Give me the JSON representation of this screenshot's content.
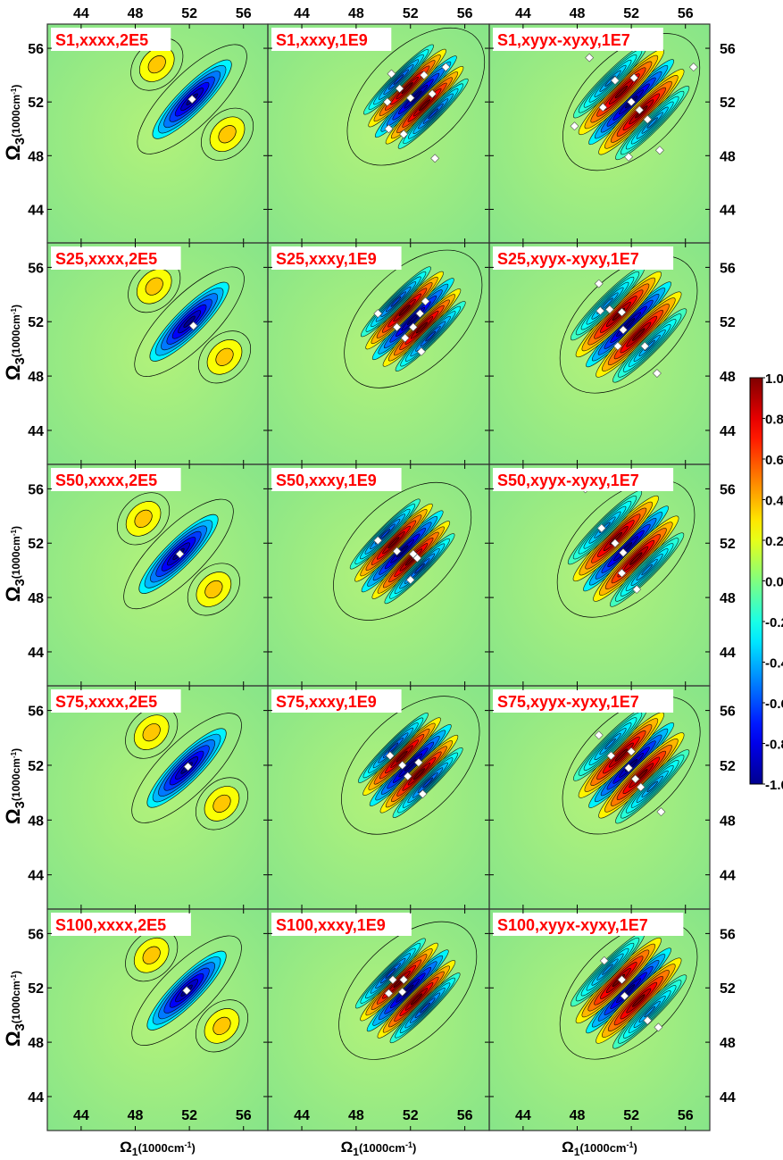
{
  "chart_data": {
    "type": "heatmap",
    "description_grid": "5 rows x 3 columns of 2D spectra contour maps",
    "x_axis": {
      "label_main": "Ω",
      "label_sub": "1",
      "label_unit": "(1000cm",
      "label_exp": "-1",
      "label_close": ")",
      "range": [
        41.5,
        57.8
      ],
      "ticks": [
        44,
        48,
        52,
        56
      ]
    },
    "y_axis": {
      "label_main": "Ω",
      "label_sub": "3",
      "label_unit": "(1000cm",
      "label_exp": "-1",
      "label_close": ")",
      "range": [
        41.5,
        57.8
      ],
      "ticks": [
        44,
        48,
        52,
        56
      ]
    },
    "colorbar": {
      "range": [
        -1.0,
        1.0
      ],
      "tick_labels": [
        "1.0",
        "0.8",
        "0.6",
        "0.4",
        "0.2",
        "0.0",
        "-0.2",
        "-0.4",
        "-0.6",
        "-0.8",
        "-1.0"
      ],
      "colors": [
        "#00008f",
        "#0000ff",
        "#0080ff",
        "#00ffff",
        "#80ff80",
        "#ffff00",
        "#ff8000",
        "#ff0000",
        "#800000"
      ]
    },
    "panel_titles": [
      [
        "S1,xxxx,2E5",
        "S1,xxxy,1E9",
        "S1,xyyx-xyxy,1E7"
      ],
      [
        "S25,xxxx,2E5",
        "S25,xxxy,1E9",
        "S25,xyyx-xyxy,1E7"
      ],
      [
        "S50,xxxx,2E5",
        "S50,xxxy,1E9",
        "S50,xyyx-xyxy,1E7"
      ],
      [
        "S75,xxxx,2E5",
        "S75,xxxy,1E9",
        "S75,xyyx-xyxy,1E7"
      ],
      [
        "S100,xxxx,2E5",
        "S100,xxxy,1E9",
        "S100,xyyx-xyxy,1E7"
      ]
    ],
    "column_types": [
      "xxxx",
      "xxxy",
      "xyyx-xyxy"
    ],
    "diagonal_center": [
      [
        52.2,
        52.4,
        52.0
      ],
      [
        52.0,
        52.2,
        51.8
      ],
      [
        51.2,
        51.4,
        51.6
      ],
      [
        51.8,
        52.0,
        52.0
      ],
      [
        51.8,
        51.8,
        51.8
      ]
    ],
    "peak_markers": [
      [
        [
          [
            52.2,
            52.2
          ]
        ],
        [
          [
            50.6,
            54.1
          ],
          [
            51.2,
            53.0
          ],
          [
            50.3,
            52.0
          ],
          [
            52.0,
            52.3
          ],
          [
            53.6,
            52.6
          ],
          [
            50.4,
            50.0
          ],
          [
            51.5,
            49.6
          ],
          [
            53.8,
            47.8
          ],
          [
            53.0,
            54.0
          ],
          [
            54.6,
            54.6
          ]
        ],
        [
          [
            48.9,
            55.3
          ],
          [
            50.8,
            53.6
          ],
          [
            52.2,
            53.8
          ],
          [
            52.0,
            52.0
          ],
          [
            52.6,
            51.4
          ],
          [
            49.9,
            51.6
          ],
          [
            47.8,
            50.2
          ],
          [
            53.2,
            50.7
          ],
          [
            51.8,
            47.9
          ],
          [
            54.1,
            48.4
          ],
          [
            56.6,
            54.6
          ]
        ]
      ],
      [
        [
          [
            52.3,
            51.7
          ]
        ],
        [
          [
            49.6,
            52.6
          ],
          [
            51.0,
            51.6
          ],
          [
            53.1,
            53.5
          ],
          [
            52.2,
            51.6
          ],
          [
            51.6,
            50.8
          ],
          [
            52.8,
            49.8
          ],
          [
            52.7,
            52.6
          ]
        ],
        [
          [
            49.6,
            54.8
          ],
          [
            49.7,
            52.8
          ],
          [
            50.4,
            52.9
          ],
          [
            51.3,
            52.7
          ],
          [
            51.4,
            51.4
          ],
          [
            51.0,
            50.2
          ],
          [
            53.0,
            50.2
          ],
          [
            53.9,
            48.2
          ]
        ]
      ],
      [
        [
          [
            51.3,
            51.2
          ]
        ],
        [
          [
            49.6,
            52.2
          ],
          [
            51.0,
            51.4
          ],
          [
            52.2,
            51.2
          ],
          [
            52.0,
            49.3
          ],
          [
            52.5,
            50.9
          ]
        ],
        [
          [
            48.6,
            56.0
          ],
          [
            49.8,
            53.1
          ],
          [
            50.8,
            52.0
          ],
          [
            51.4,
            51.3
          ],
          [
            51.3,
            49.8
          ],
          [
            52.4,
            48.6
          ]
        ]
      ],
      [
        [
          [
            51.9,
            51.9
          ]
        ],
        [
          [
            50.5,
            52.7
          ],
          [
            51.4,
            52.0
          ],
          [
            52.6,
            52.2
          ],
          [
            51.8,
            51.2
          ],
          [
            52.9,
            49.9
          ]
        ],
        [
          [
            49.6,
            54.2
          ],
          [
            50.5,
            52.7
          ],
          [
            52.0,
            53.0
          ],
          [
            51.8,
            51.8
          ],
          [
            52.3,
            51.0
          ],
          [
            52.7,
            50.4
          ],
          [
            54.2,
            48.6
          ]
        ]
      ],
      [
        [
          [
            51.8,
            51.8
          ]
        ],
        [
          [
            50.7,
            52.6
          ],
          [
            50.4,
            51.6
          ],
          [
            51.4,
            51.7
          ],
          [
            51.5,
            52.6
          ]
        ],
        [
          [
            50.0,
            54.0
          ],
          [
            51.3,
            52.6
          ],
          [
            51.5,
            51.4
          ],
          [
            53.2,
            49.6
          ],
          [
            54.0,
            49.1
          ]
        ]
      ]
    ]
  }
}
